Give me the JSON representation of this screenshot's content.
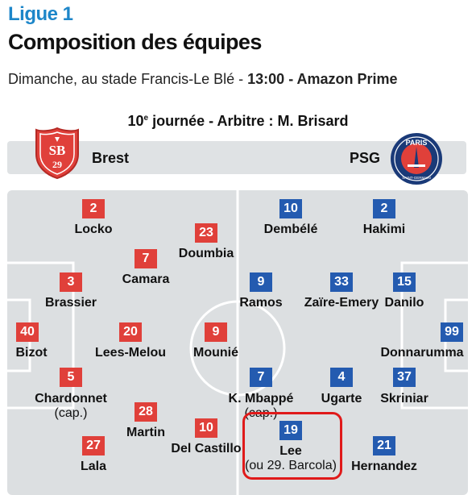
{
  "header": {
    "league": "Ligue 1",
    "title": "Composition des équipes",
    "subtitle_prefix": "Dimanche, au stade Francis-Le Blé - ",
    "kickoff": "13:00",
    "separator": " - ",
    "broadcaster": "Amazon Prime"
  },
  "match": {
    "round_number": "10",
    "round_suffix": "e",
    "round_rest": " journée - Arbitre : M. Brisard"
  },
  "teams": {
    "home": {
      "name": "Brest",
      "color": "#e0403a",
      "crest_icon": "brest-crest-icon",
      "crest_text": "SB29"
    },
    "away": {
      "name": "PSG",
      "color": "#245bb0",
      "crest_icon": "psg-crest-icon",
      "crest_text": "PARIS SAINT-GERMAIN"
    }
  },
  "players": {
    "home": [
      {
        "num": "2",
        "name": "Locko"
      },
      {
        "num": "23",
        "name": "Doumbia"
      },
      {
        "num": "7",
        "name": "Camara"
      },
      {
        "num": "3",
        "name": "Brassier"
      },
      {
        "num": "40",
        "name": "Bizot"
      },
      {
        "num": "20",
        "name": "Lees-Melou"
      },
      {
        "num": "9",
        "name": "Mounié"
      },
      {
        "num": "5",
        "name": "Chardonnet",
        "note": "(cap.)"
      },
      {
        "num": "28",
        "name": "Martin"
      },
      {
        "num": "10",
        "name": "Del Castillo"
      },
      {
        "num": "27",
        "name": "Lala"
      }
    ],
    "away": [
      {
        "num": "10",
        "name": "Dembélé"
      },
      {
        "num": "2",
        "name": "Hakimi"
      },
      {
        "num": "9",
        "name": "Ramos"
      },
      {
        "num": "33",
        "name": "Zaïre-Emery"
      },
      {
        "num": "15",
        "name": "Danilo"
      },
      {
        "num": "99",
        "name": "Donnarumma"
      },
      {
        "num": "7",
        "name": "K. Mbappé",
        "note": "(cap.)"
      },
      {
        "num": "4",
        "name": "Ugarte"
      },
      {
        "num": "37",
        "name": "Skriniar"
      },
      {
        "num": "19",
        "name": "Lee",
        "note": "(ou 29. Barcola)"
      },
      {
        "num": "21",
        "name": "Hernandez"
      }
    ]
  },
  "colors": {
    "league_blue": "#1d86c9",
    "pitch": "#dcdfe1",
    "pitch_lines": "#ffffff",
    "highlight": "#e01a1a"
  }
}
